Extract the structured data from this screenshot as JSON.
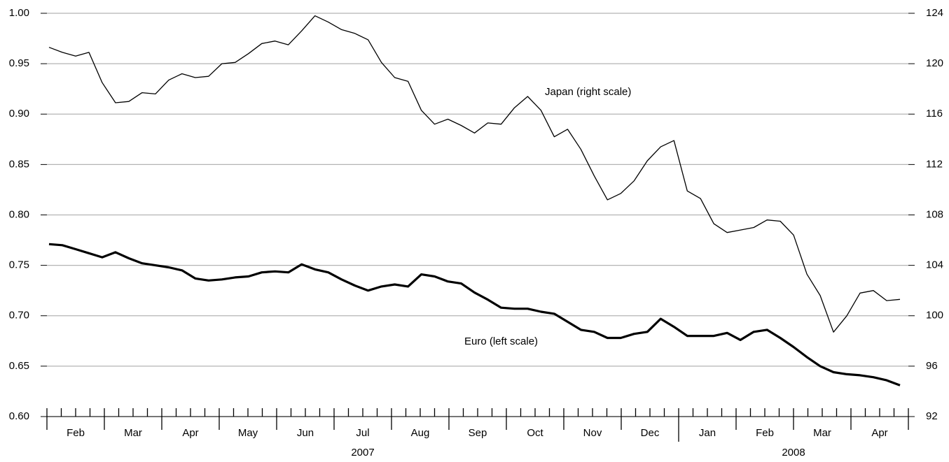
{
  "chart_data": {
    "type": "line",
    "months": [
      "Feb",
      "Mar",
      "Apr",
      "May",
      "Jun",
      "Jul",
      "Aug",
      "Sep",
      "Oct",
      "Nov",
      "Dec",
      "Jan",
      "Feb",
      "Mar",
      "Apr"
    ],
    "years": [
      "2007",
      "2008"
    ],
    "series": [
      {
        "name": "Euro (left scale)",
        "color": "#000000",
        "axis": "y",
        "values": [
          0.771,
          0.77,
          0.766,
          0.762,
          0.758,
          0.763,
          0.757,
          0.752,
          0.75,
          0.748,
          0.745,
          0.737,
          0.735,
          0.736,
          0.738,
          0.739,
          0.743,
          0.744,
          0.743,
          0.751,
          0.746,
          0.743,
          0.736,
          0.73,
          0.725,
          0.729,
          0.731,
          0.729,
          0.741,
          0.739,
          0.734,
          0.732,
          0.723,
          0.716,
          0.708,
          0.707,
          0.707,
          0.704,
          0.702,
          0.694,
          0.686,
          0.684,
          0.678,
          0.678,
          0.682,
          0.684,
          0.697,
          0.689,
          0.68,
          0.68,
          0.68,
          0.683,
          0.676,
          0.684,
          0.686,
          0.678,
          0.669,
          0.659,
          0.65,
          0.644,
          0.642,
          0.641,
          0.639,
          0.636,
          0.631
        ]
      },
      {
        "name": "Japan (right scale)",
        "color": "#000000",
        "axis": "y2",
        "values": [
          121.3,
          120.9,
          120.6,
          120.9,
          118.5,
          116.9,
          117.0,
          117.7,
          117.6,
          118.7,
          119.2,
          118.9,
          119.0,
          120.0,
          120.1,
          120.8,
          121.6,
          121.8,
          121.5,
          122.6,
          123.8,
          123.3,
          122.7,
          122.4,
          121.9,
          120.1,
          118.9,
          118.6,
          116.3,
          115.2,
          115.6,
          115.1,
          114.5,
          115.3,
          115.2,
          116.5,
          117.4,
          116.3,
          114.2,
          114.8,
          113.2,
          111.1,
          109.2,
          109.7,
          110.7,
          112.3,
          113.4,
          113.9,
          109.9,
          109.3,
          107.3,
          106.6,
          106.8,
          107.0,
          107.6,
          107.5,
          106.4,
          103.3,
          101.6,
          98.7,
          100.0,
          101.8,
          102.0,
          101.2,
          101.3
        ]
      }
    ],
    "ylim": [
      0.6,
      1.0
    ],
    "yticks": [
      {
        "value": 0.6,
        "label": "0.60"
      },
      {
        "value": 0.65,
        "label": "0.65"
      },
      {
        "value": 0.7,
        "label": "0.70"
      },
      {
        "value": 0.75,
        "label": "0.75"
      },
      {
        "value": 0.8,
        "label": "0.80"
      },
      {
        "value": 0.85,
        "label": "0.85"
      },
      {
        "value": 0.9,
        "label": "0.90"
      },
      {
        "value": 0.95,
        "label": "0.95"
      },
      {
        "value": 1.0,
        "label": "1.00"
      }
    ],
    "y2lim": [
      92,
      124
    ],
    "y2ticks": [
      92,
      96,
      100,
      104,
      108,
      112,
      116,
      120,
      124
    ],
    "grid": true
  }
}
